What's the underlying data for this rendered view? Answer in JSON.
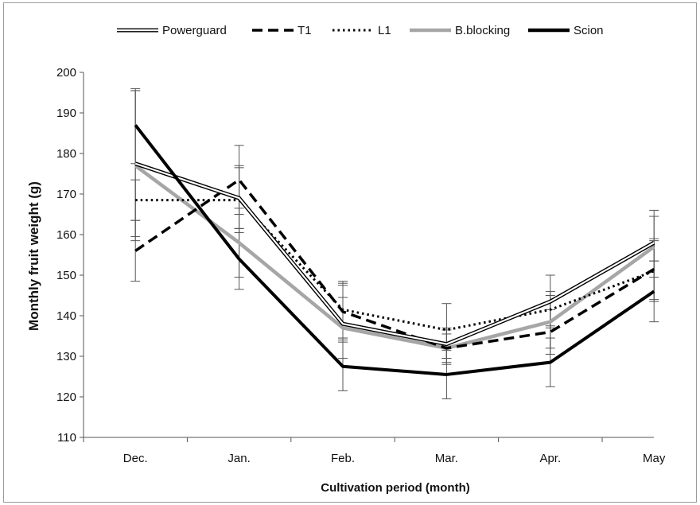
{
  "chart_data": {
    "type": "line",
    "title": "",
    "xlabel": "Cultivation period (month)",
    "ylabel": "Monthly fruit weight (g)",
    "categories": [
      "Dec.",
      "Jan.",
      "Feb.",
      "Mar.",
      "Apr.",
      "May"
    ],
    "ylim": [
      110,
      200
    ],
    "yticks": [
      110,
      120,
      130,
      140,
      150,
      160,
      170,
      180,
      190,
      200
    ],
    "grid": false,
    "legend_position": "top",
    "series": [
      {
        "name": "Powerguard",
        "style": "double",
        "color": "#000000",
        "values": [
          177.5,
          169,
          138,
          133,
          143.5,
          158
        ],
        "err_low": [
          159.5,
          161.5,
          134.5,
          129.5,
          137.5,
          153.5
        ],
        "err_high": [
          195.5,
          177,
          147.5,
          137,
          150,
          166
        ]
      },
      {
        "name": "T1",
        "style": "dashed",
        "color": "#000000",
        "values": [
          156,
          173.5,
          141,
          132,
          136,
          151.5
        ],
        "err_low": [
          148.5,
          165,
          134,
          128,
          130.5,
          144
        ],
        "err_high": [
          163.5,
          182,
          148,
          136.5,
          141.5,
          159
        ]
      },
      {
        "name": "L1",
        "style": "dotted",
        "color": "#000000",
        "values": [
          168.5,
          168.5,
          141.5,
          136.5,
          141.5,
          151
        ],
        "err_low": [
          163.5,
          160.5,
          134.5,
          129.5,
          137,
          143.5
        ],
        "err_high": [
          173.5,
          176.5,
          148.5,
          143,
          146,
          158.5
        ]
      },
      {
        "name": "B.blocking",
        "style": "solid",
        "color": "#a6a6a6",
        "values": [
          177,
          158,
          137,
          132,
          138.5,
          157
        ],
        "err_low": [
          158.5,
          149.5,
          129.5,
          128.5,
          132,
          149.5
        ],
        "err_high": [
          195.5,
          166.5,
          144.5,
          135.5,
          145,
          164.5
        ]
      },
      {
        "name": "Scion",
        "style": "solid",
        "color": "#000000",
        "values": [
          187,
          154,
          127.5,
          125.5,
          128.5,
          146
        ],
        "err_low": [
          177.5,
          146.5,
          121.5,
          119.5,
          122.5,
          138.5
        ],
        "err_high": [
          196,
          161.5,
          133.5,
          131.5,
          134.5,
          153.5
        ]
      }
    ]
  }
}
